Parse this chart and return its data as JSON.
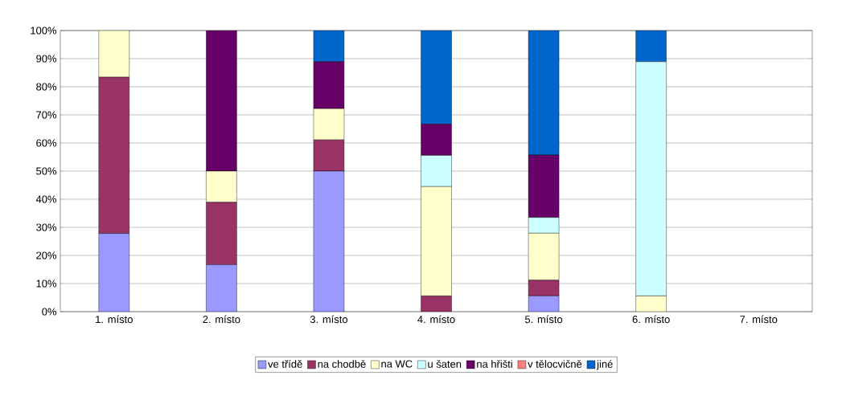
{
  "chart_data": {
    "type": "bar",
    "stacked": true,
    "grid": "y",
    "legend": "bottom",
    "categories": [
      "1. místo",
      "2. místo",
      "3. místo",
      "4. místo",
      "5. místo",
      "6. místo",
      "7. místo"
    ],
    "ylim": [
      0,
      100
    ],
    "yticks": [
      {
        "value": 0,
        "label": "0%"
      },
      {
        "value": 10,
        "label": "10%"
      },
      {
        "value": 20,
        "label": "20%"
      },
      {
        "value": 30,
        "label": "30%"
      },
      {
        "value": 40,
        "label": "40%"
      },
      {
        "value": 50,
        "label": "50%"
      },
      {
        "value": 60,
        "label": "60%"
      },
      {
        "value": 70,
        "label": "70%"
      },
      {
        "value": 80,
        "label": "80%"
      },
      {
        "value": 90,
        "label": "90%"
      },
      {
        "value": 100,
        "label": "100%"
      }
    ],
    "series": [
      {
        "name": "ve třídě",
        "color": "#9999ff",
        "values": [
          27.8,
          16.7,
          50,
          0,
          5.6,
          0,
          0
        ]
      },
      {
        "name": "na chodbě",
        "color": "#993366",
        "values": [
          55.6,
          22.2,
          11.1,
          5.6,
          5.6,
          0,
          0
        ]
      },
      {
        "name": "na WC",
        "color": "#ffffcc",
        "values": [
          16.6,
          11.1,
          11.1,
          38.9,
          16.7,
          5.6,
          0
        ]
      },
      {
        "name": "u šaten",
        "color": "#ccffff",
        "values": [
          0,
          0,
          0,
          11.1,
          5.6,
          83.3,
          0
        ]
      },
      {
        "name": "na hřišti",
        "color": "#660066",
        "values": [
          0,
          50,
          16.7,
          11.1,
          22.2,
          0,
          0
        ]
      },
      {
        "name": "v tělocvičně",
        "color": "#ff8080",
        "values": [
          0,
          0,
          0,
          0,
          0,
          0,
          0
        ]
      },
      {
        "name": "jiné",
        "color": "#0066cc",
        "values": [
          0,
          0,
          11.1,
          33.3,
          44.3,
          11.1,
          0
        ]
      }
    ]
  }
}
